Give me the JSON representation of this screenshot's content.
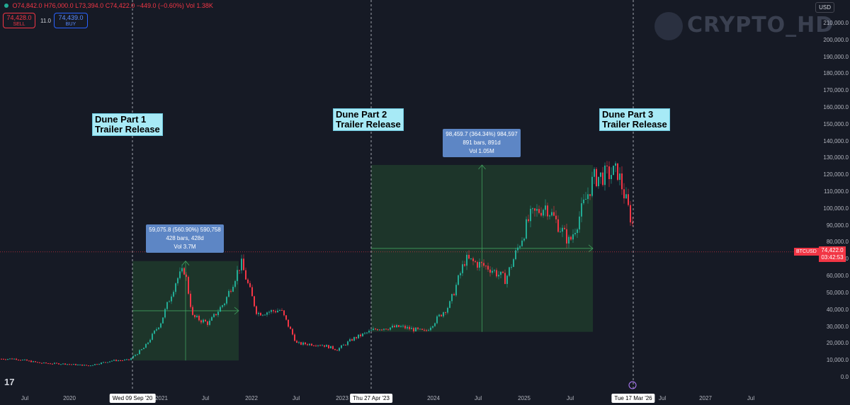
{
  "header": {
    "ohlc_open": "O74,842.0",
    "ohlc_high": "H76,000.0",
    "ohlc_low": "L73,394.0",
    "ohlc_close": "C74,422.0",
    "ohlc_change": "−449.0 (−0.60%)",
    "volume": "Vol 1.38K",
    "sell_price": "74,428.0",
    "sell_label": "SELL",
    "spread": "11.0",
    "buy_price": "74,439.0",
    "buy_label": "BUY",
    "currency": "USD"
  },
  "watermark": "CRYPTO_HD",
  "annotations": [
    {
      "text": "Dune Part 1\nTrailer Release"
    },
    {
      "text": "Dune Part 2\nTrailer Release"
    },
    {
      "text": "Dune Part 3\nTrailer Release"
    }
  ],
  "measurements": [
    {
      "line1": "59,075.8 (560.90%) 590,758",
      "line2": "428 bars, 428d",
      "line3": "Vol 3.7M"
    },
    {
      "line1": "98,459.7 (364.34%) 984,597",
      "line2": "891 bars, 891d",
      "line3": "Vol 1.05M"
    }
  ],
  "price_axis": [
    "210,000.0",
    "200,000.0",
    "190,000.0",
    "180,000.0",
    "170,000.0",
    "160,000.0",
    "150,000.0",
    "140,000.0",
    "130,000.0",
    "120,000.0",
    "110,000.0",
    "100,000.0",
    "90,000.0",
    "80,000.0",
    "70,000.0",
    "60,000.0",
    "50,000.0",
    "40,000.0",
    "30,000.0",
    "20,000.0",
    "10,000.0",
    "0.0"
  ],
  "time_axis": [
    "Jul",
    "2020",
    "2021",
    "Jul",
    "2022",
    "Jul",
    "2023",
    "2024",
    "Jul",
    "2025",
    "Jul",
    "Jul",
    "2027",
    "Jul"
  ],
  "time_flags": [
    "Wed 09 Sep '20",
    "Thu 27 Apr '23",
    "Tue 17 Mar '26"
  ],
  "current": {
    "ticker": "BTCUSD",
    "price": "74,422.0",
    "countdown": "03:42:53"
  },
  "colors": {
    "up": "#22ab94",
    "down": "#f23645",
    "box_fill": "#1e3a2a",
    "annotation_bg": "#a7eaf6",
    "measure_bg": "#5d86c5"
  },
  "chart_data": {
    "type": "candlestick",
    "symbol": "BTCUSD",
    "x": [
      "2019-07",
      "2019-10",
      "2020-01",
      "2020-04",
      "2020-07",
      "2020-09",
      "2020-11",
      "2021-01",
      "2021-03",
      "2021-04",
      "2021-05",
      "2021-07",
      "2021-09",
      "2021-11",
      "2022-01",
      "2022-04",
      "2022-06",
      "2022-09",
      "2022-11",
      "2023-01",
      "2023-04",
      "2023-07",
      "2023-10",
      "2024-01",
      "2024-03",
      "2024-06",
      "2024-08",
      "2024-11",
      "2025-01",
      "2025-04",
      "2025-07",
      "2025-10",
      "2025-12",
      "2026-02",
      "2026-03"
    ],
    "y": [
      11000,
      8500,
      8000,
      7000,
      10000,
      10300,
      18000,
      33000,
      58000,
      64000,
      36000,
      32000,
      45000,
      68000,
      38000,
      40000,
      20000,
      19500,
      16500,
      23000,
      29000,
      30000,
      27000,
      43000,
      70000,
      65000,
      58000,
      95000,
      102000,
      80000,
      118000,
      122000,
      88000,
      68000,
      74422
    ],
    "ylim": [
      0,
      215000
    ],
    "measurements": [
      {
        "from": "2020-09-09",
        "to": "2021-11-10",
        "low": 10000,
        "high": 69000
      },
      {
        "from": "2023-04-27",
        "to": "2025-10-06",
        "low": 27000,
        "high": 126000
      }
    ],
    "vertical_lines": [
      "2020-09-09",
      "2023-04-27",
      "2026-03-17"
    ],
    "current_price": 74422
  }
}
